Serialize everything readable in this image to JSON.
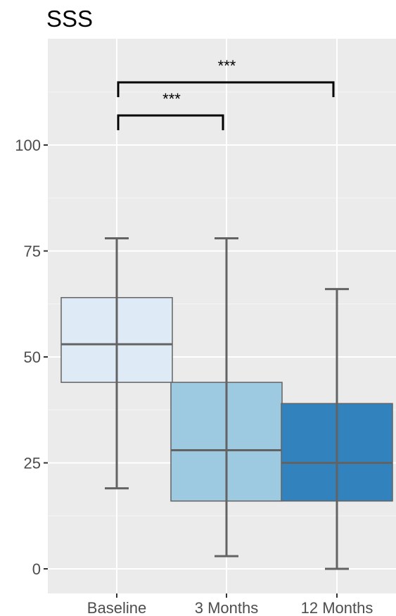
{
  "chart_data": {
    "type": "box",
    "title": "SSS",
    "xlabel": "",
    "ylabel": "",
    "ylim": [
      -2,
      120
    ],
    "y_ticks": [
      0,
      25,
      50,
      75,
      100
    ],
    "y_tick_labels": [
      "0",
      "25",
      "50",
      "75",
      "100"
    ],
    "categories": [
      "Baseline",
      "3 Months",
      "12 Months"
    ],
    "boxes": [
      {
        "category": "Baseline",
        "min": 19,
        "q1": 44,
        "median": 53,
        "q3": 64,
        "max": 78,
        "color": "#deebf7"
      },
      {
        "category": "3 Months",
        "min": 3,
        "q1": 16,
        "median": 28,
        "q3": 44,
        "max": 78,
        "color": "#9ecae1"
      },
      {
        "category": "12 Months",
        "min": 0,
        "q1": 16,
        "median": 25,
        "q3": 39,
        "max": 66,
        "color": "#3182bd"
      }
    ],
    "significance": [
      {
        "from": "Baseline",
        "to": "3 Months",
        "label": "***"
      },
      {
        "from": "Baseline",
        "to": "12 Months",
        "label": "***"
      }
    ],
    "grid": true,
    "panel_background": "#ebebeb",
    "box_outline_color": "#636363"
  }
}
